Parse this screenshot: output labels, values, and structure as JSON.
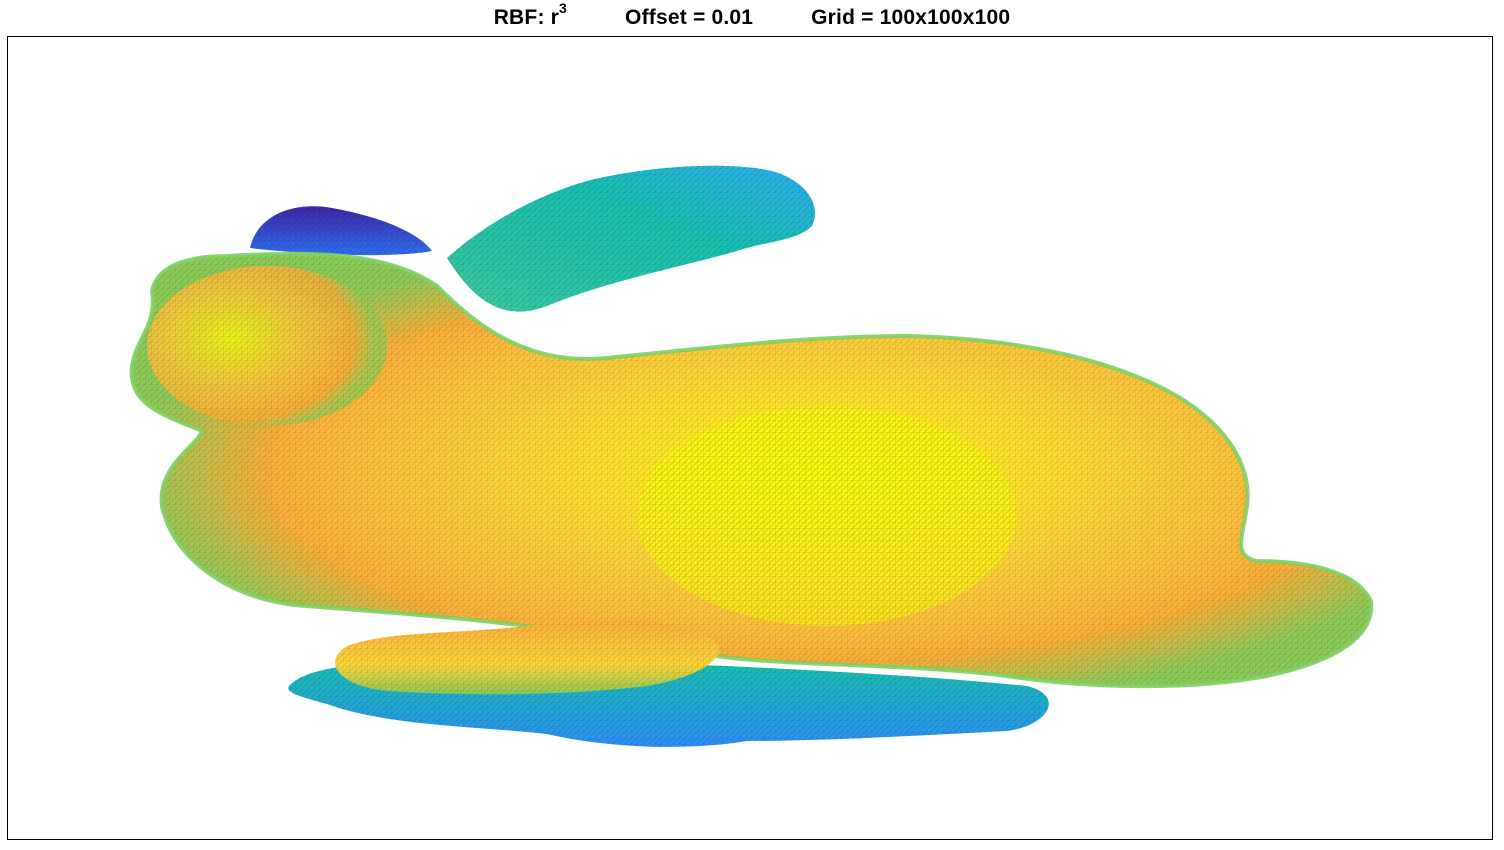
{
  "title": {
    "rbf_label": "RBF: r",
    "rbf_exponent": "3",
    "offset_label": "Offset = 0.01",
    "grid_label": "Grid = 100x100x100"
  },
  "colormap": {
    "low": "#3e26a8",
    "mid_low": "#2e9df7",
    "mid": "#18c0b0",
    "mid_high": "#8ccb58",
    "high_orange": "#fbb03b",
    "peak_yellow": "#f9fb0e"
  },
  "shape": {
    "kind": "wireframe-surface",
    "subject": "bunny"
  }
}
